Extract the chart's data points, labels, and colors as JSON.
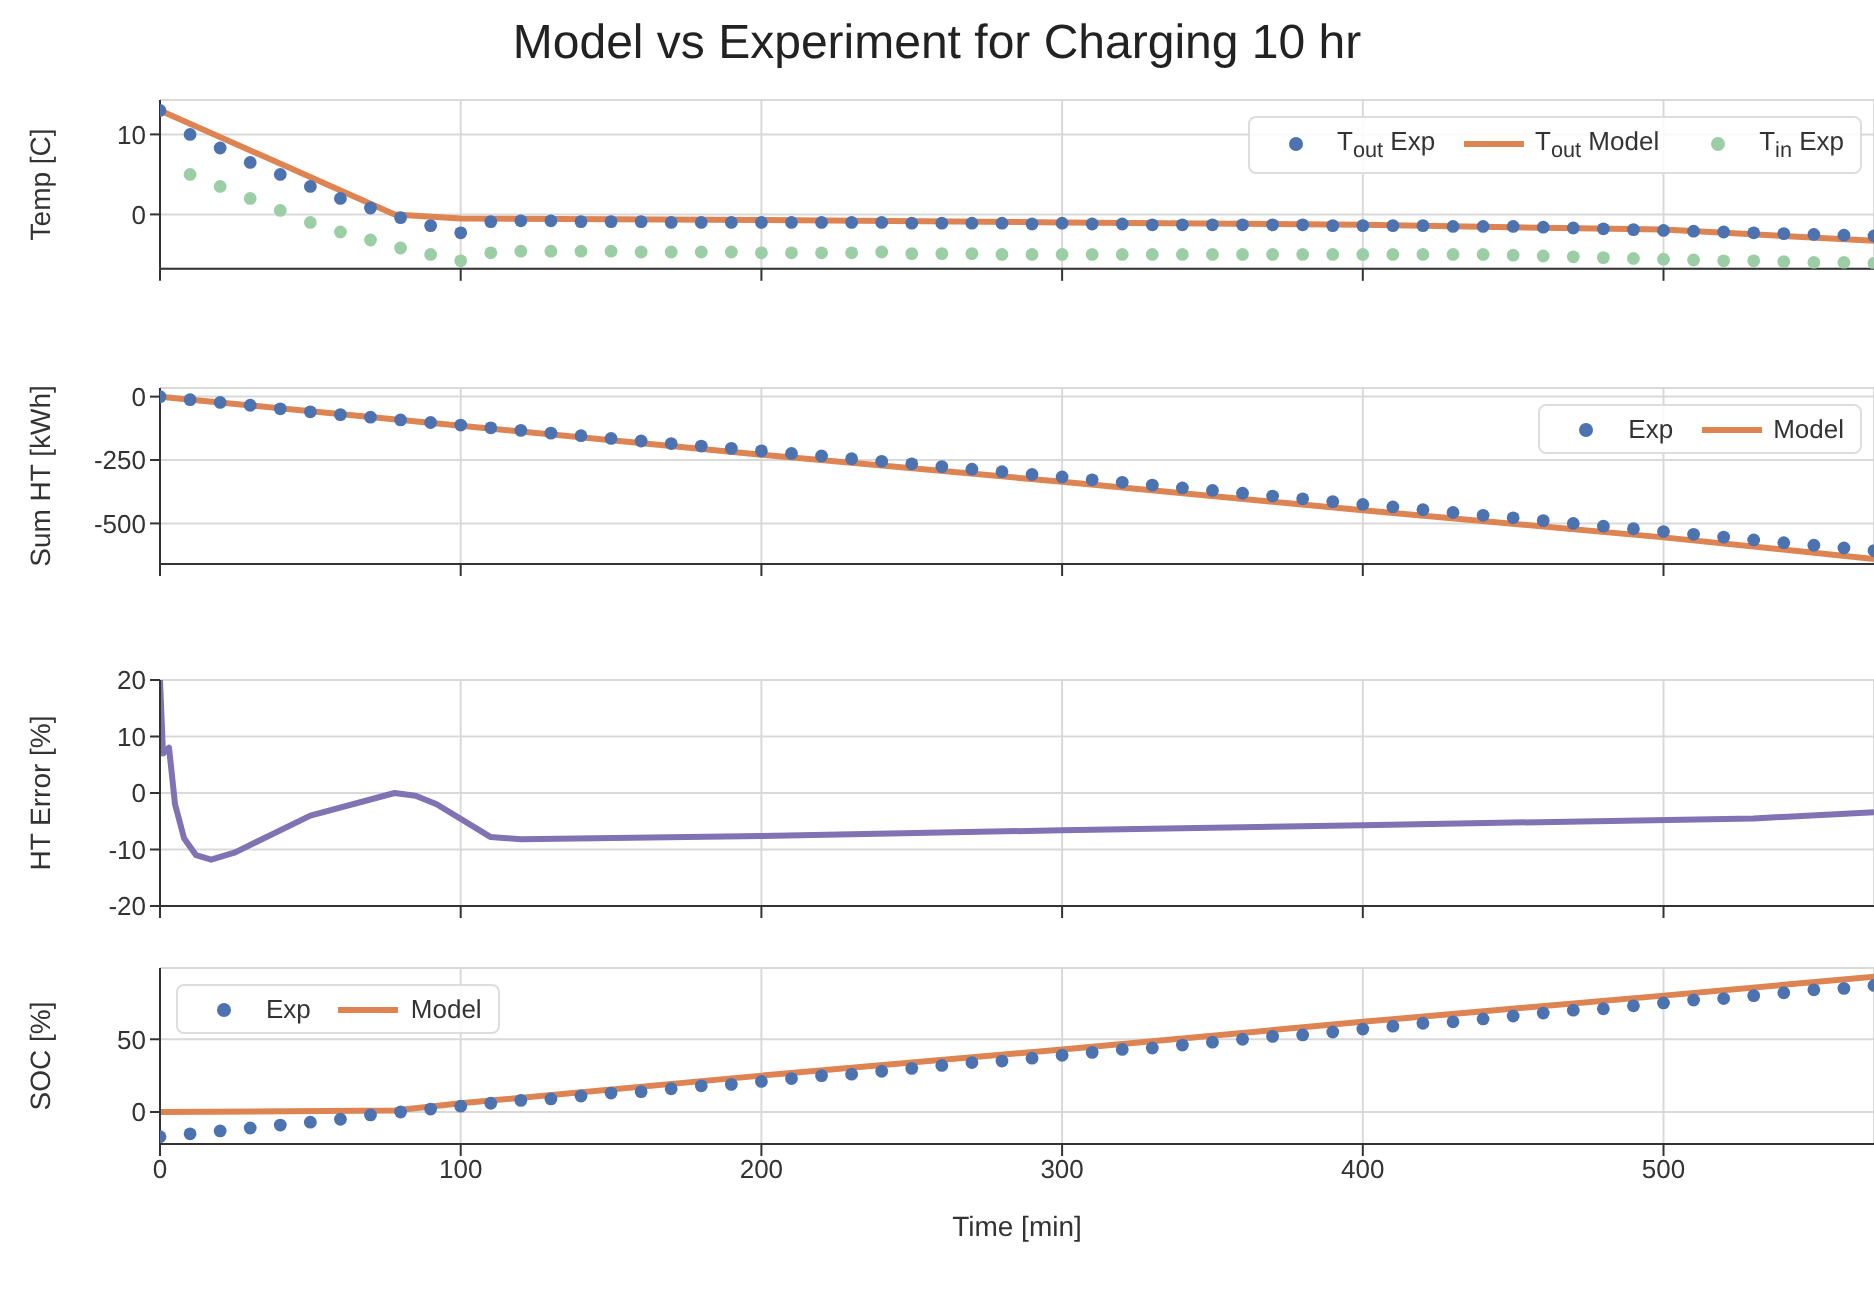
{
  "chart_data": [
    {
      "type": "scatter",
      "title": "Model vs Experiment for Charging 10 hr",
      "ylabel": "Temp [C]",
      "xlim": [
        0,
        570
      ],
      "xticks": [
        0,
        100,
        200,
        300,
        400,
        500
      ],
      "ylim": [
        -6.8,
        14.3
      ],
      "yticks": [
        0,
        10
      ],
      "grid": true,
      "legend": "top right",
      "tick_labels": "y",
      "x": [
        0,
        10,
        20,
        30,
        40,
        50,
        60,
        70,
        80,
        90,
        100,
        110,
        120,
        130,
        140,
        150,
        160,
        170,
        180,
        190,
        200,
        210,
        220,
        230,
        240,
        250,
        260,
        270,
        280,
        290,
        300,
        310,
        320,
        330,
        340,
        350,
        360,
        370,
        380,
        390,
        400,
        410,
        420,
        430,
        440,
        450,
        460,
        470,
        480,
        490,
        500,
        510,
        520,
        530,
        540,
        550,
        560,
        570
      ],
      "series": [
        {
          "name": "T$_{out}$ Exp",
          "marker": "circle",
          "color": "#4c72b0",
          "values": [
            13,
            10,
            8.3,
            6.5,
            5,
            3.5,
            2,
            0.8,
            -0.4,
            -1.4,
            -2.3,
            -0.9,
            -0.8,
            -0.8,
            -0.9,
            -0.9,
            -0.9,
            -1,
            -1,
            -1,
            -1,
            -1,
            -1,
            -1,
            -1,
            -1.1,
            -1.1,
            -1.1,
            -1.1,
            -1.2,
            -1.1,
            -1.2,
            -1.2,
            -1.3,
            -1.3,
            -1.3,
            -1.3,
            -1.3,
            -1.3,
            -1.4,
            -1.4,
            -1.4,
            -1.4,
            -1.5,
            -1.5,
            -1.5,
            -1.6,
            -1.7,
            -1.8,
            -1.9,
            -2,
            -2.1,
            -2.2,
            -2.3,
            -2.4,
            -2.5,
            -2.6,
            -2.7
          ]
        },
        {
          "name": "T$_{out}$ Model",
          "type": "line",
          "color": "#dd8452",
          "x": [
            0,
            78,
            100,
            200,
            300,
            400,
            500,
            570
          ],
          "values": [
            13,
            0,
            -0.5,
            -0.7,
            -1,
            -1.3,
            -1.9,
            -3.3
          ]
        },
        {
          "name": "T$_{in}$ Exp",
          "marker": "circle",
          "color": "#9ccea6",
          "values": [
            null,
            5,
            3.5,
            2,
            0.5,
            -1,
            -2.2,
            -3.2,
            -4.2,
            -5,
            -5.8,
            -4.8,
            -4.6,
            -4.6,
            -4.6,
            -4.6,
            -4.7,
            -4.7,
            -4.7,
            -4.7,
            -4.8,
            -4.8,
            -4.8,
            -4.8,
            -4.7,
            -4.9,
            -4.9,
            -4.9,
            -5,
            -5,
            -5,
            -5,
            -5,
            -5,
            -5,
            -5,
            -5,
            -5,
            -5,
            -5,
            -5,
            -5,
            -5,
            -5,
            -5,
            -5.1,
            -5.2,
            -5.3,
            -5.4,
            -5.5,
            -5.6,
            -5.7,
            -5.8,
            -5.8,
            -5.9,
            -6,
            -6,
            -6.1
          ]
        }
      ]
    },
    {
      "type": "scatter",
      "ylabel": "Sum HT [kWh]",
      "xlim": [
        0,
        570
      ],
      "xticks": [
        0,
        100,
        200,
        300,
        400,
        500
      ],
      "ylim": [
        -660,
        34
      ],
      "yticks": [
        0,
        -250,
        -500
      ],
      "grid": true,
      "legend": "top right",
      "tick_labels": "y",
      "x": [
        0,
        10,
        20,
        30,
        40,
        50,
        60,
        70,
        80,
        90,
        100,
        110,
        120,
        130,
        140,
        150,
        160,
        170,
        180,
        190,
        200,
        210,
        220,
        230,
        240,
        250,
        260,
        270,
        280,
        290,
        300,
        310,
        320,
        330,
        340,
        350,
        360,
        370,
        380,
        390,
        400,
        410,
        420,
        430,
        440,
        450,
        460,
        470,
        480,
        490,
        500,
        510,
        520,
        530,
        540,
        550,
        560,
        570
      ],
      "series": [
        {
          "name": "Exp",
          "marker": "circle",
          "color": "#4c72b0",
          "values": [
            0,
            -12,
            -23,
            -34,
            -48,
            -60,
            -71,
            -81,
            -92,
            -102,
            -112,
            -123,
            -133,
            -144,
            -154,
            -165,
            -175,
            -185,
            -195,
            -204,
            -214,
            -224,
            -234,
            -245,
            -255,
            -265,
            -276,
            -286,
            -296,
            -307,
            -317,
            -328,
            -338,
            -349,
            -360,
            -370,
            -381,
            -392,
            -403,
            -414,
            -425,
            -435,
            -446,
            -457,
            -468,
            -478,
            -489,
            -500,
            -511,
            -521,
            -532,
            -543,
            -554,
            -565,
            -576,
            -586,
            -597,
            -607
          ]
        },
        {
          "name": "Model",
          "type": "line",
          "color": "#dd8452",
          "x": [
            0,
            100,
            200,
            300,
            400,
            500,
            570
          ],
          "values": [
            0,
            -115,
            -229,
            -336,
            -448,
            -555,
            -640
          ]
        }
      ]
    },
    {
      "type": "line",
      "ylabel": "HT Error [%]",
      "xlim": [
        0,
        570
      ],
      "xticks": [
        0,
        100,
        200,
        300,
        400,
        500
      ],
      "ylim": [
        -20,
        20
      ],
      "yticks": [
        -20,
        -10,
        0,
        10,
        20
      ],
      "grid": true,
      "tick_labels": "y",
      "x": [
        0,
        1,
        3,
        5,
        8,
        12,
        17,
        25,
        50,
        78,
        85,
        92,
        110,
        120,
        200,
        300,
        400,
        530,
        570
      ],
      "series": [
        {
          "color": "#8172b3",
          "values": [
            20,
            7,
            8,
            -2,
            -8,
            -11,
            -11.8,
            -10.5,
            -4,
            0,
            -0.5,
            -2,
            -7.8,
            -8.2,
            -7.6,
            -6.6,
            -5.7,
            -4.5,
            -3.4
          ]
        }
      ]
    },
    {
      "type": "scatter",
      "ylabel": "SOC [%]",
      "xlabel": "Time [min]",
      "xlim": [
        0,
        570
      ],
      "xticks": [
        0,
        100,
        200,
        300,
        400,
        500
      ],
      "ylim": [
        -22,
        99
      ],
      "yticks": [
        0,
        50
      ],
      "grid": true,
      "legend": "top left",
      "x": [
        0,
        10,
        20,
        30,
        40,
        50,
        60,
        70,
        80,
        90,
        100,
        110,
        120,
        130,
        140,
        150,
        160,
        170,
        180,
        190,
        200,
        210,
        220,
        230,
        240,
        250,
        260,
        270,
        280,
        290,
        300,
        310,
        320,
        330,
        340,
        350,
        360,
        370,
        380,
        390,
        400,
        410,
        420,
        430,
        440,
        450,
        460,
        470,
        480,
        490,
        500,
        510,
        520,
        530,
        540,
        550,
        560,
        570
      ],
      "series": [
        {
          "name": "Exp",
          "marker": "circle",
          "color": "#4c72b0",
          "values": [
            -17,
            -15,
            -13,
            -11,
            -9,
            -7,
            -5,
            -2,
            0,
            2,
            4,
            6,
            8,
            9,
            11,
            13,
            14,
            16,
            18,
            19,
            21,
            23,
            25,
            26,
            28,
            30,
            32,
            34,
            35,
            37,
            39,
            41,
            43,
            44,
            46,
            48,
            50,
            52,
            53,
            55,
            57,
            59,
            61,
            62,
            64,
            66,
            68,
            70,
            71,
            73,
            75,
            77,
            78,
            80,
            82,
            84,
            85,
            87
          ]
        },
        {
          "name": "Model",
          "type": "line",
          "color": "#dd8452",
          "x": [
            0,
            78,
            100,
            200,
            300,
            400,
            500,
            570
          ],
          "values": [
            0,
            1,
            6,
            25,
            43,
            62,
            80,
            93
          ]
        }
      ]
    }
  ]
}
